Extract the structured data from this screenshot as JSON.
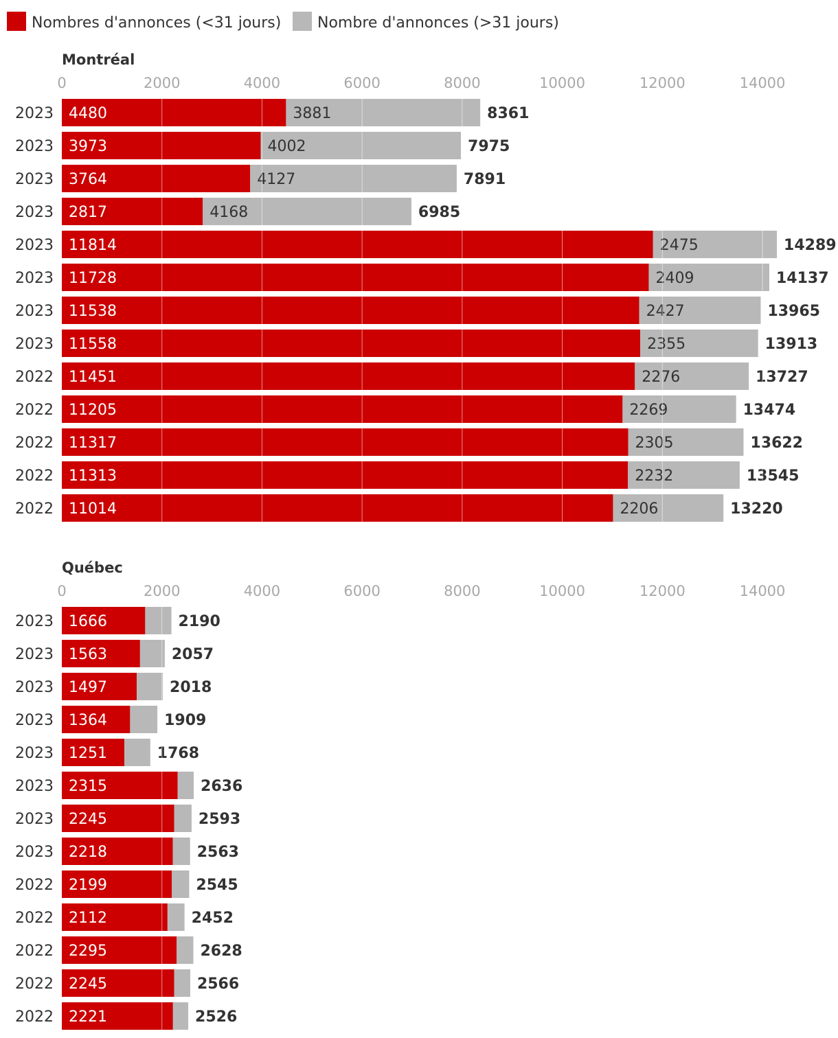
{
  "chart_data": {
    "type": "bar",
    "orientation": "horizontal",
    "stacked": true,
    "legend": {
      "placement": "top-left",
      "entries": [
        {
          "name": "Nombres d'annonces (<31 jours)",
          "color": "#cc0000"
        },
        {
          "name": "Nombre d'annonces (>31 jours)",
          "color": "#b8b8b8"
        }
      ]
    },
    "colors": {
      "recent": "#cc0000",
      "older": "#b8b8b8",
      "grid": "#ffffff"
    },
    "xlim": [
      0,
      14000
    ],
    "xticks": [
      "0",
      "2000",
      "4000",
      "6000",
      "8000",
      "10000",
      "12000",
      "14000"
    ],
    "panels": [
      {
        "title": "Montréal",
        "categories": [
          "2023",
          "2023",
          "2023",
          "2023",
          "2023",
          "2023",
          "2023",
          "2023",
          "2022",
          "2022",
          "2022",
          "2022",
          "2022"
        ],
        "series": [
          {
            "name": "Nombres d'annonces (<31 jours)",
            "values": [
              4480,
              3973,
              3764,
              2817,
              11814,
              11728,
              11538,
              11558,
              11451,
              11205,
              11317,
              11313,
              11014
            ]
          },
          {
            "name": "Nombre d'annonces (>31 jours)",
            "values": [
              3881,
              4002,
              4127,
              4168,
              2475,
              2409,
              2427,
              2355,
              2276,
              2269,
              2305,
              2232,
              2206
            ]
          }
        ],
        "totals": [
          8361,
          7975,
          7891,
          6985,
          14289,
          14137,
          13965,
          13913,
          13727,
          13474,
          13622,
          13545,
          13220
        ],
        "show_older_labels": true
      },
      {
        "title": "Québec",
        "categories": [
          "2023",
          "2023",
          "2023",
          "2023",
          "2023",
          "2023",
          "2023",
          "2023",
          "2022",
          "2022",
          "2022",
          "2022",
          "2022"
        ],
        "series": [
          {
            "name": "Nombres d'annonces (<31 jours)",
            "values": [
              1666,
              1563,
              1497,
              1364,
              1251,
              2315,
              2245,
              2218,
              2199,
              2112,
              2295,
              2245,
              2221
            ]
          },
          {
            "name": "Nombre d'annonces (>31 jours)",
            "values": [
              524,
              494,
              521,
              545,
              517,
              321,
              348,
              345,
              346,
              340,
              333,
              321,
              305
            ]
          }
        ],
        "totals": [
          2190,
          2057,
          2018,
          1909,
          1768,
          2636,
          2593,
          2563,
          2545,
          2452,
          2628,
          2566,
          2526
        ],
        "show_older_labels": false
      }
    ]
  }
}
